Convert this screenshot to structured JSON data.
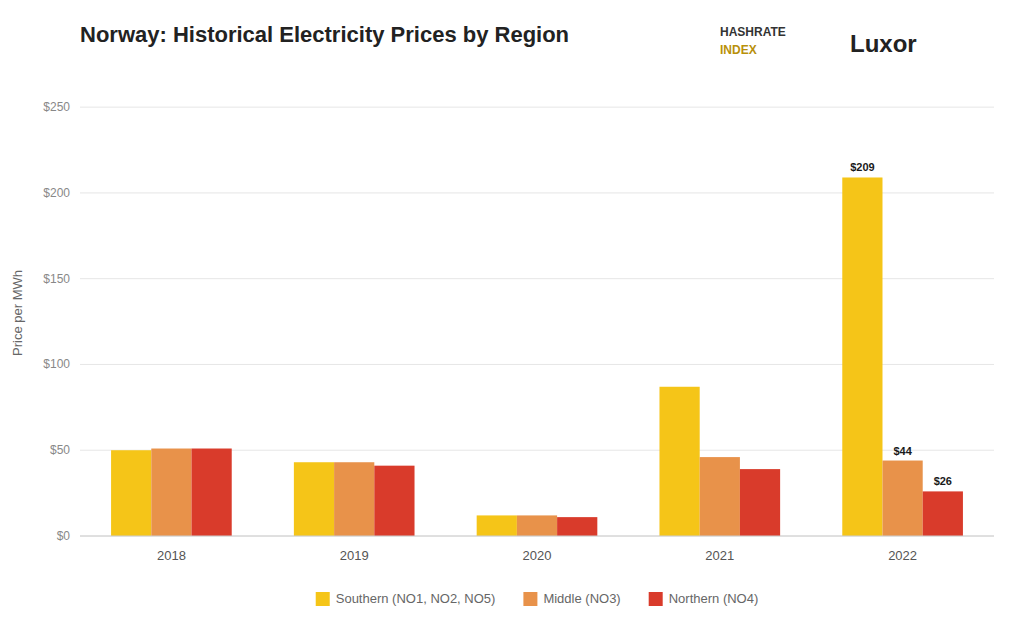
{
  "chart_data": {
    "type": "bar",
    "title": "Norway: Historical Electricity Prices by Region",
    "ylabel": "Price per MWh",
    "categories": [
      "2018",
      "2019",
      "2020",
      "2021",
      "2022"
    ],
    "series": [
      {
        "name": "Southern (NO1, NO2, NO5)",
        "color": "#F5C518",
        "values": [
          50,
          43,
          12,
          87,
          209
        ],
        "value_labels": [
          null,
          null,
          null,
          null,
          "$209"
        ]
      },
      {
        "name": "Middle (NO3)",
        "color": "#E8924A",
        "values": [
          51,
          43,
          12,
          46,
          44
        ],
        "value_labels": [
          null,
          null,
          null,
          null,
          "$44"
        ]
      },
      {
        "name": "Northern (NO4)",
        "color": "#D93B2B",
        "values": [
          51,
          41,
          11,
          39,
          26
        ],
        "value_labels": [
          null,
          null,
          null,
          null,
          "$26"
        ]
      }
    ],
    "ylim": [
      0,
      260
    ],
    "yticks": [
      {
        "value": 0,
        "label": "$0"
      },
      {
        "value": 50,
        "label": "$50"
      },
      {
        "value": 100,
        "label": "$100"
      },
      {
        "value": 150,
        "label": "$150"
      },
      {
        "value": 200,
        "label": "$200"
      },
      {
        "value": 250,
        "label": "$250"
      }
    ],
    "grid": true,
    "legend": "bottom",
    "data_labels": true,
    "annotations": [
      "HASHRATE",
      "INDEX",
      "Luxor"
    ]
  }
}
